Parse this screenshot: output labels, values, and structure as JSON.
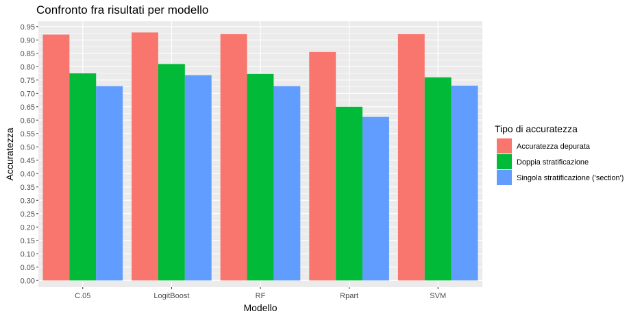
{
  "chart_data": {
    "type": "bar",
    "title": "Confronto fra risultati per modello",
    "xlabel": "Modello",
    "ylabel": "Accuratezza",
    "categories": [
      "C.05",
      "LogitBoost",
      "RF",
      "Rpart",
      "SVM"
    ],
    "ylim": [
      -0.025,
      0.97
    ],
    "yticks": [
      0.0,
      0.05,
      0.1,
      0.15,
      0.2,
      0.25,
      0.3,
      0.35,
      0.4,
      0.45,
      0.5,
      0.55,
      0.6,
      0.65,
      0.7,
      0.75,
      0.8,
      0.85,
      0.9,
      0.95
    ],
    "ytick_labels": [
      "0.00",
      "0.05",
      "0.10",
      "0.15",
      "0.20",
      "0.25",
      "0.30",
      "0.35",
      "0.40",
      "0.45",
      "0.50",
      "0.55",
      "0.60",
      "0.65",
      "0.70",
      "0.75",
      "0.80",
      "0.85",
      "0.90",
      "0.95"
    ],
    "grid": true,
    "legend": {
      "title": "Tipo di accuratezza",
      "position": "right"
    },
    "series": [
      {
        "name": "Accuratezza depurata",
        "color": "#F8766D",
        "values": [
          0.92,
          0.928,
          0.922,
          0.855,
          0.922
        ]
      },
      {
        "name": "Doppia stratificazione",
        "color": "#00BA38",
        "values": [
          0.775,
          0.81,
          0.773,
          0.65,
          0.76
        ]
      },
      {
        "name": "Singola stratificazione ('section')",
        "color": "#619CFF",
        "values": [
          0.727,
          0.768,
          0.727,
          0.612,
          0.729
        ]
      }
    ]
  }
}
